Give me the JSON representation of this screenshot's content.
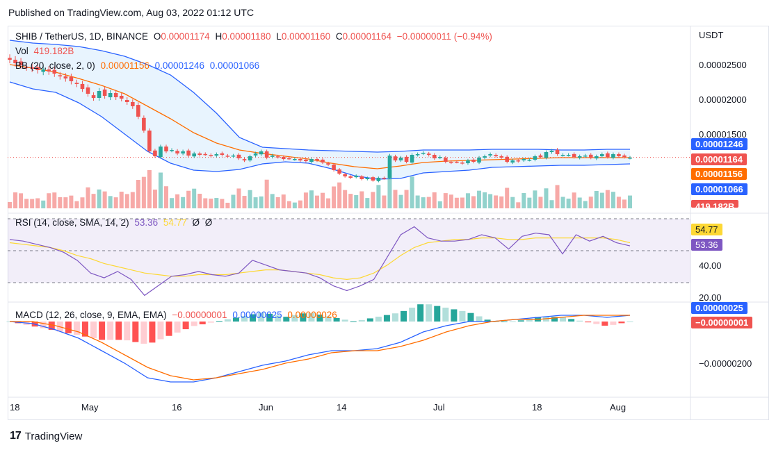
{
  "header": {
    "published": "Published on TradingView.com, Aug 03, 2022 01:12 UTC"
  },
  "price_pane": {
    "symbol": "SHIB / TetherUS, 1D, BINANCE",
    "ohlc": {
      "o_label": "O",
      "o": "0.00001174",
      "h_label": "H",
      "h": "0.00001180",
      "l_label": "L",
      "l": "0.00001160",
      "c_label": "C",
      "c": "0.00001164",
      "change": "−0.00000011 (−0.94%)"
    },
    "vol_label": "Vol",
    "vol_value": "419.182B",
    "bb_label": "BB (20, close, 2, 0)",
    "bb_basis": "0.00001156",
    "bb_upper": "0.00001246",
    "bb_lower": "0.00001066",
    "currency": "USDT",
    "y_ticks": [
      "0.00002500",
      "0.00002000",
      "0.00001500"
    ],
    "tags": {
      "upper": "0.00001246",
      "last": "0.00001164",
      "basis": "0.00001156",
      "lower": "0.00001066",
      "volume": "419.182B"
    }
  },
  "rsi_pane": {
    "label": "RSI (14, close, SMA, 14, 2)",
    "rsi_value": "53.36",
    "sma_value": "54.77",
    "extra1": "Ø",
    "extra2": "Ø",
    "y_ticks": [
      "40.00",
      "20.00"
    ],
    "tags": {
      "sma": "54.77",
      "rsi": "53.36"
    }
  },
  "macd_pane": {
    "label": "MACD (12, 26, close, 9, EMA, EMA)",
    "hist_value": "−0.00000001",
    "macd_value": "0.00000025",
    "signal_value": "0.00000026",
    "y_ticks": [
      "−0.00000200"
    ],
    "tags": {
      "macd": "0.00000025",
      "hist": "−0.00000001"
    }
  },
  "x_axis": {
    "labels": [
      "18",
      "May",
      "16",
      "Jun",
      "14",
      "Jul",
      "18",
      "Aug"
    ]
  },
  "footer": {
    "brand": "TradingView"
  },
  "colors": {
    "up": "#26a69a",
    "down": "#ef5350",
    "bb_band": "#2962ff",
    "bb_basis": "#ff6d00",
    "rsi": "#7e57c2",
    "rsi_sma": "#fdd835",
    "macd": "#2962ff",
    "signal": "#ff6d00"
  },
  "chart_data": {
    "type": "candlestick",
    "title": "SHIB / TetherUS, 1D, BINANCE",
    "x_range": [
      "2022-04-18",
      "2022-08-02"
    ],
    "close_approx": [
      2.57e-05,
      2.52e-05,
      2.49e-05,
      2.46e-05,
      2.44e-05,
      2.42e-05,
      2.43e-05,
      2.4e-05,
      2.37e-05,
      2.33e-05,
      2.3e-05,
      2.26e-05,
      2.22e-05,
      2.15e-05,
      2.08e-05,
      2.02e-05,
      2.12e-05,
      2.05e-05,
      2.09e-05,
      2.03e-05,
      2.01e-05,
      1.96e-05,
      1.9e-05,
      1.75e-05,
      1.55e-05,
      1.25e-05,
      1.18e-05,
      1.32e-05,
      1.25e-05,
      1.27e-05,
      1.22e-05,
      1.25e-05,
      1.19e-05,
      1.22e-05,
      1.2e-05,
      1.21e-05,
      1.19e-05,
      1.21e-05,
      1.2e-05,
      1.18e-05,
      1.19e-05,
      1.15e-05,
      1.12e-05,
      1.18e-05,
      1.22e-05,
      1.25e-05,
      1.16e-05,
      1.19e-05,
      1.17e-05,
      1.14e-05,
      1.15e-05,
      1.14e-05,
      1.12e-05,
      1.11e-05,
      1.14e-05,
      1.12e-05,
      1.09e-05,
      1.06e-05,
      9.8e-06,
      9.3e-06,
      8.9e-06,
      8.7e-06,
      9e-06,
      8.5e-06,
      8.7e-06,
      8.3e-06,
      8.7e-06,
      8.6e-06,
      1.19e-05,
      1.12e-05,
      1.16e-05,
      1.1e-05,
      1.2e-05,
      1.21e-05,
      1.23e-05,
      1.2e-05,
      1.15e-05,
      1.17e-05,
      1.1e-05,
      1.09e-05,
      1.1e-05,
      1.08e-05,
      1.12e-05,
      1.1e-05,
      1.16e-05,
      1.18e-05,
      1.21e-05,
      1.18e-05,
      1.16e-05,
      1.1e-05,
      1.12e-05,
      1.11e-05,
      1.14e-05,
      1.13e-05,
      1.18e-05,
      1.17e-05,
      1.24e-05,
      1.26e-05,
      1.21e-05,
      1.2e-05,
      1.2e-05,
      1.17e-05,
      1.18e-05,
      1.19e-05,
      1.16e-05,
      1.18e-05,
      1.21e-05,
      1.17e-05,
      1.21e-05,
      1.18e-05,
      1.17e-05,
      1.16e-05
    ],
    "bb_upper_approx": [
      2.85e-05,
      2.81e-05,
      2.79e-05,
      2.76e-05,
      2.7e-05,
      2.62e-05,
      2.5e-05,
      2.35e-05,
      2.1e-05,
      1.8e-05,
      1.45e-05,
      1.31e-05,
      1.29e-05,
      1.27e-05,
      1.26e-05,
      1.25e-05,
      1.24e-05,
      1.25e-05,
      1.27e-05,
      1.27e-05,
      1.27e-05,
      1.28e-05,
      1.28e-05,
      1.28e-05,
      1.27e-05,
      1.27e-05,
      1.28e-05,
      1.28e-05
    ],
    "bb_basis_approx": [
      2.5e-05,
      2.45e-05,
      2.39e-05,
      2.3e-05,
      2.2e-05,
      2.08e-05,
      1.9e-05,
      1.72e-05,
      1.52e-05,
      1.37e-05,
      1.27e-05,
      1.22e-05,
      1.18e-05,
      1.14e-05,
      1.08e-05,
      1.03e-05,
      1e-05,
      1.04e-05,
      1.09e-05,
      1.11e-05,
      1.12e-05,
      1.13e-05,
      1.14e-05,
      1.15e-05,
      1.16e-05,
      1.16e-05,
      1.16e-05,
      1.16e-05
    ],
    "bb_lower_approx": [
      2.25e-05,
      2.15e-05,
      2.1e-05,
      1.95e-05,
      1.75e-05,
      1.5e-05,
      1.25e-05,
      1.08e-05,
      9.8e-06,
      9.6e-06,
      9.9e-06,
      1.07e-05,
      1.1e-05,
      1.08e-05,
      1e-05,
      9e-06,
      8.5e-06,
      8.6e-06,
      9.4e-06,
      9.6e-06,
      9.8e-06,
      1.02e-05,
      1.03e-05,
      1.04e-05,
      1.05e-05,
      1.05e-05,
      1.06e-05,
      1.07e-05
    ],
    "rsi_approx": [
      57,
      56,
      54,
      52,
      49,
      44,
      36,
      33,
      37,
      32,
      22,
      28,
      34,
      35,
      37,
      35,
      34,
      36,
      44,
      41,
      38,
      37,
      36,
      33,
      28,
      25,
      28,
      32,
      46,
      60,
      65,
      58,
      56,
      56,
      57,
      60,
      58,
      51,
      59,
      61,
      60,
      48,
      60,
      56,
      59,
      55,
      53
    ],
    "rsi_sma_approx": [
      55,
      54,
      53,
      52,
      50,
      47,
      45,
      42,
      40,
      38,
      36,
      35,
      34,
      34,
      35,
      35,
      35,
      36,
      37,
      38,
      38,
      37,
      36,
      35,
      33,
      32,
      33,
      36,
      41,
      47,
      52,
      55,
      56,
      57,
      57,
      58,
      58,
      57,
      57,
      58,
      58,
      58,
      58,
      58,
      58,
      57,
      55
    ],
    "rsi_levels": [
      70,
      50,
      30
    ],
    "macd_line_approx": [
      0.0,
      -1e-07,
      -4e-07,
      -8e-07,
      -1.4e-06,
      -2e-06,
      -2.7e-06,
      -2.9e-06,
      -2.9e-06,
      -2.7e-06,
      -2.4e-06,
      -2.1e-06,
      -1.9e-06,
      -1.6e-06,
      -1.4e-06,
      -1.4e-06,
      -1.3e-06,
      -1e-06,
      -5e-07,
      -2e-07,
      0.0,
      0.0,
      1e-07,
      2e-07,
      3e-07,
      3e-07,
      2e-07,
      3e-07
    ],
    "signal_line_approx": [
      0.0,
      0.0,
      -2e-07,
      -5e-07,
      -1e-06,
      -1.6e-06,
      -2.2e-06,
      -2.6e-06,
      -2.8e-06,
      -2.7e-06,
      -2.5e-06,
      -2.3e-06,
      -2e-06,
      -1.8e-06,
      -1.5e-06,
      -1.4e-06,
      -1.4e-06,
      -1.2e-06,
      -9e-07,
      -5e-07,
      -2e-07,
      0.0,
      1e-07,
      1e-07,
      2e-07,
      3e-07,
      3e-07,
      3e-07
    ]
  }
}
